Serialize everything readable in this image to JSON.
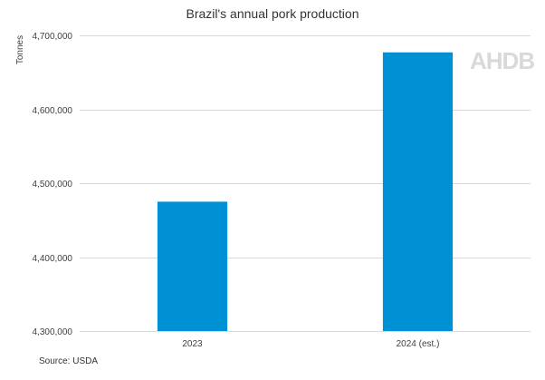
{
  "chart_data": {
    "type": "bar",
    "title": "Brazil's annual pork production",
    "ylabel": "Tonnes",
    "xlabel": "",
    "categories": [
      "2023",
      "2024 (est.)"
    ],
    "values": [
      4475000,
      4677000
    ],
    "ylim": [
      4300000,
      4700000
    ],
    "yticks": [
      "4,300,000",
      "4,400,000",
      "4,500,000",
      "4,600,000",
      "4,700,000"
    ],
    "ytick_values": [
      4300000,
      4400000,
      4500000,
      4600000,
      4700000
    ],
    "grid": true,
    "bar_color": "#0090d4",
    "grid_color": "#d9d9d9"
  },
  "source": "Source: USDA",
  "logo": "AHDB"
}
